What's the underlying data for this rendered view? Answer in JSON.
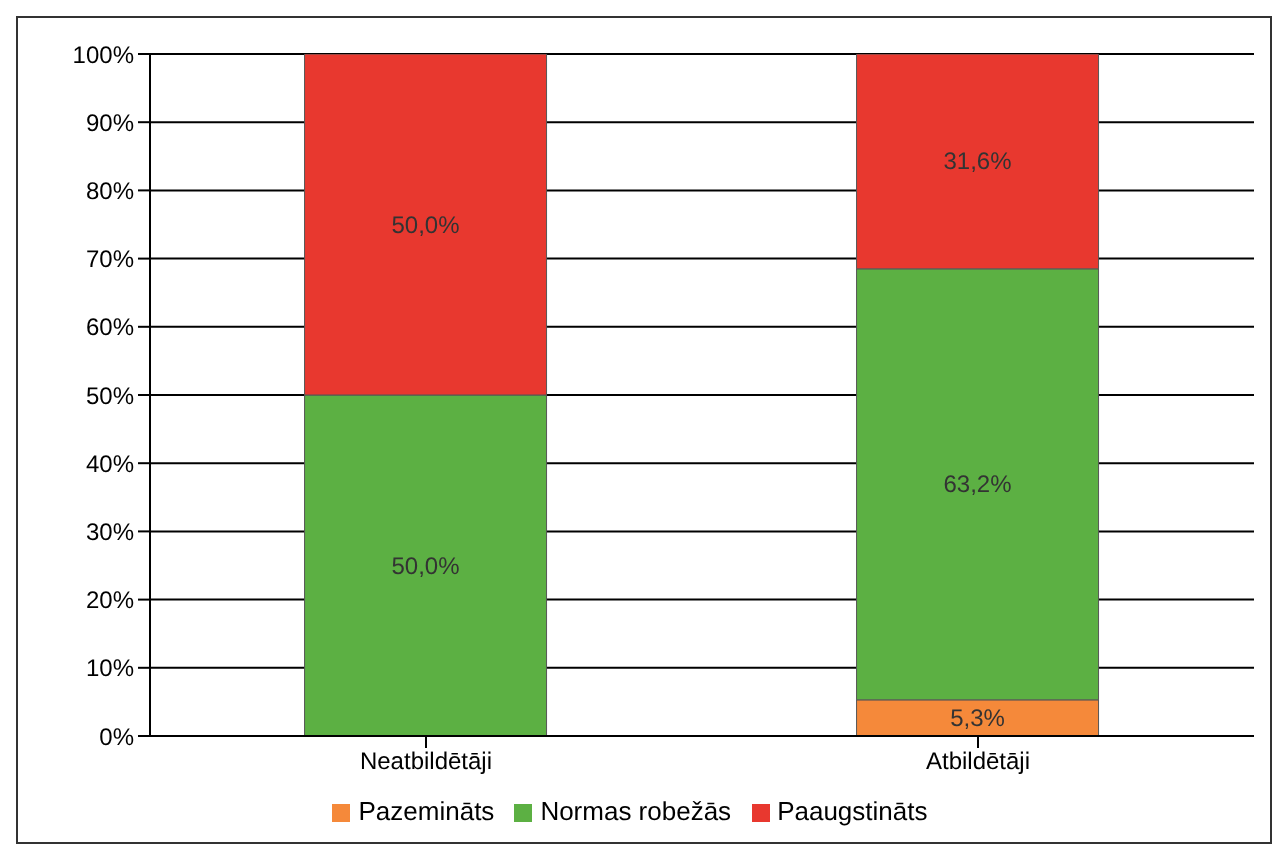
{
  "chart_data": {
    "type": "bar",
    "stacked": true,
    "categories": [
      "Neatbildētāji",
      "Atbildētāji"
    ],
    "series": [
      {
        "name": "Pazemināts",
        "color": "#f5893a",
        "values": [
          0,
          5.3
        ],
        "value_labels": [
          null,
          "5,3%"
        ]
      },
      {
        "name": "Normas robežās",
        "color": "#5cb043",
        "values": [
          50.0,
          63.2
        ],
        "value_labels": [
          "50,0%",
          "63,2%"
        ]
      },
      {
        "name": "Paaugstināts",
        "color": "#e8382f",
        "values": [
          50.0,
          31.6
        ],
        "value_labels": [
          "50,0%",
          "31,6%"
        ]
      }
    ],
    "ylim": [
      0,
      100
    ],
    "yticks": [
      {
        "value": 0,
        "label": "0%"
      },
      {
        "value": 10,
        "label": "10%"
      },
      {
        "value": 20,
        "label": "20%"
      },
      {
        "value": 30,
        "label": "30%"
      },
      {
        "value": 40,
        "label": "40%"
      },
      {
        "value": 50,
        "label": "50%"
      },
      {
        "value": 60,
        "label": "60%"
      },
      {
        "value": 70,
        "label": "70%"
      },
      {
        "value": 80,
        "label": "80%"
      },
      {
        "value": 90,
        "label": "90%"
      },
      {
        "value": 100,
        "label": "100%"
      }
    ],
    "grid": "y",
    "legend": "bottom"
  }
}
